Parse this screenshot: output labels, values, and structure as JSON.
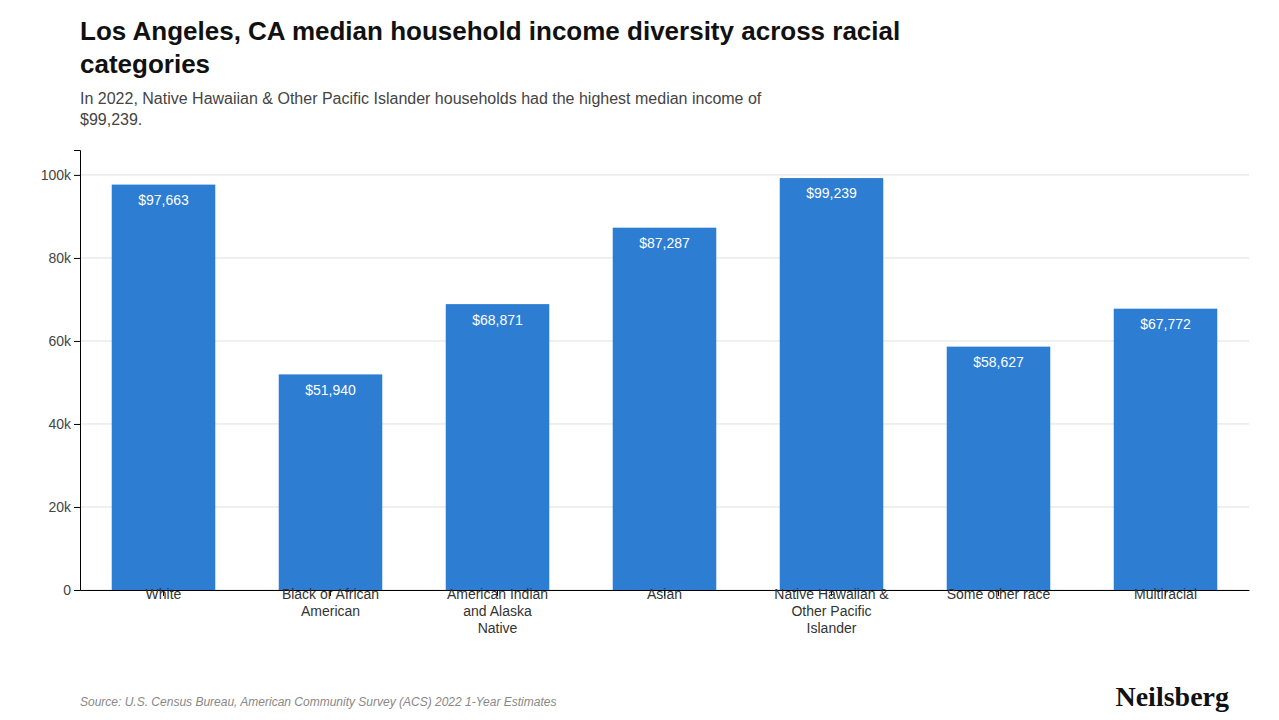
{
  "chart_data": {
    "type": "bar",
    "title": "Los Angeles, CA median household income diversity across racial\ncategories",
    "subtitle": "In 2022, Native Hawaiian & Other Pacific Islander households had the highest median income of\n$99,239.",
    "categories": [
      "White",
      "Black or African\nAmerican",
      "American Indian\nand Alaska\nNative",
      "Asian",
      "Native Hawaiian &\nOther Pacific\nIslander",
      "Some other race",
      "Multiracial"
    ],
    "values": [
      97663,
      51940,
      68871,
      87287,
      99239,
      58627,
      67772
    ],
    "value_labels": [
      "$97,663",
      "$51,940",
      "$68,871",
      "$87,287",
      "$99,239",
      "$58,627",
      "$67,772"
    ],
    "data_labels": true,
    "color": "#2D7DD2",
    "ylim": [
      0,
      106000
    ],
    "yticks": [
      0,
      {
        "value": 20000,
        "label": "20k"
      },
      {
        "value": 40000,
        "label": "40k"
      },
      {
        "value": 60000,
        "label": "60k"
      },
      {
        "value": 80000,
        "label": "80k"
      },
      {
        "value": 100000,
        "label": "100k"
      }
    ],
    "grid": true,
    "annotations": [
      "Source: U.S. Census Bureau, American Community Survey (ACS) 2022 1-Year Estimates",
      "Neilsberg"
    ]
  }
}
